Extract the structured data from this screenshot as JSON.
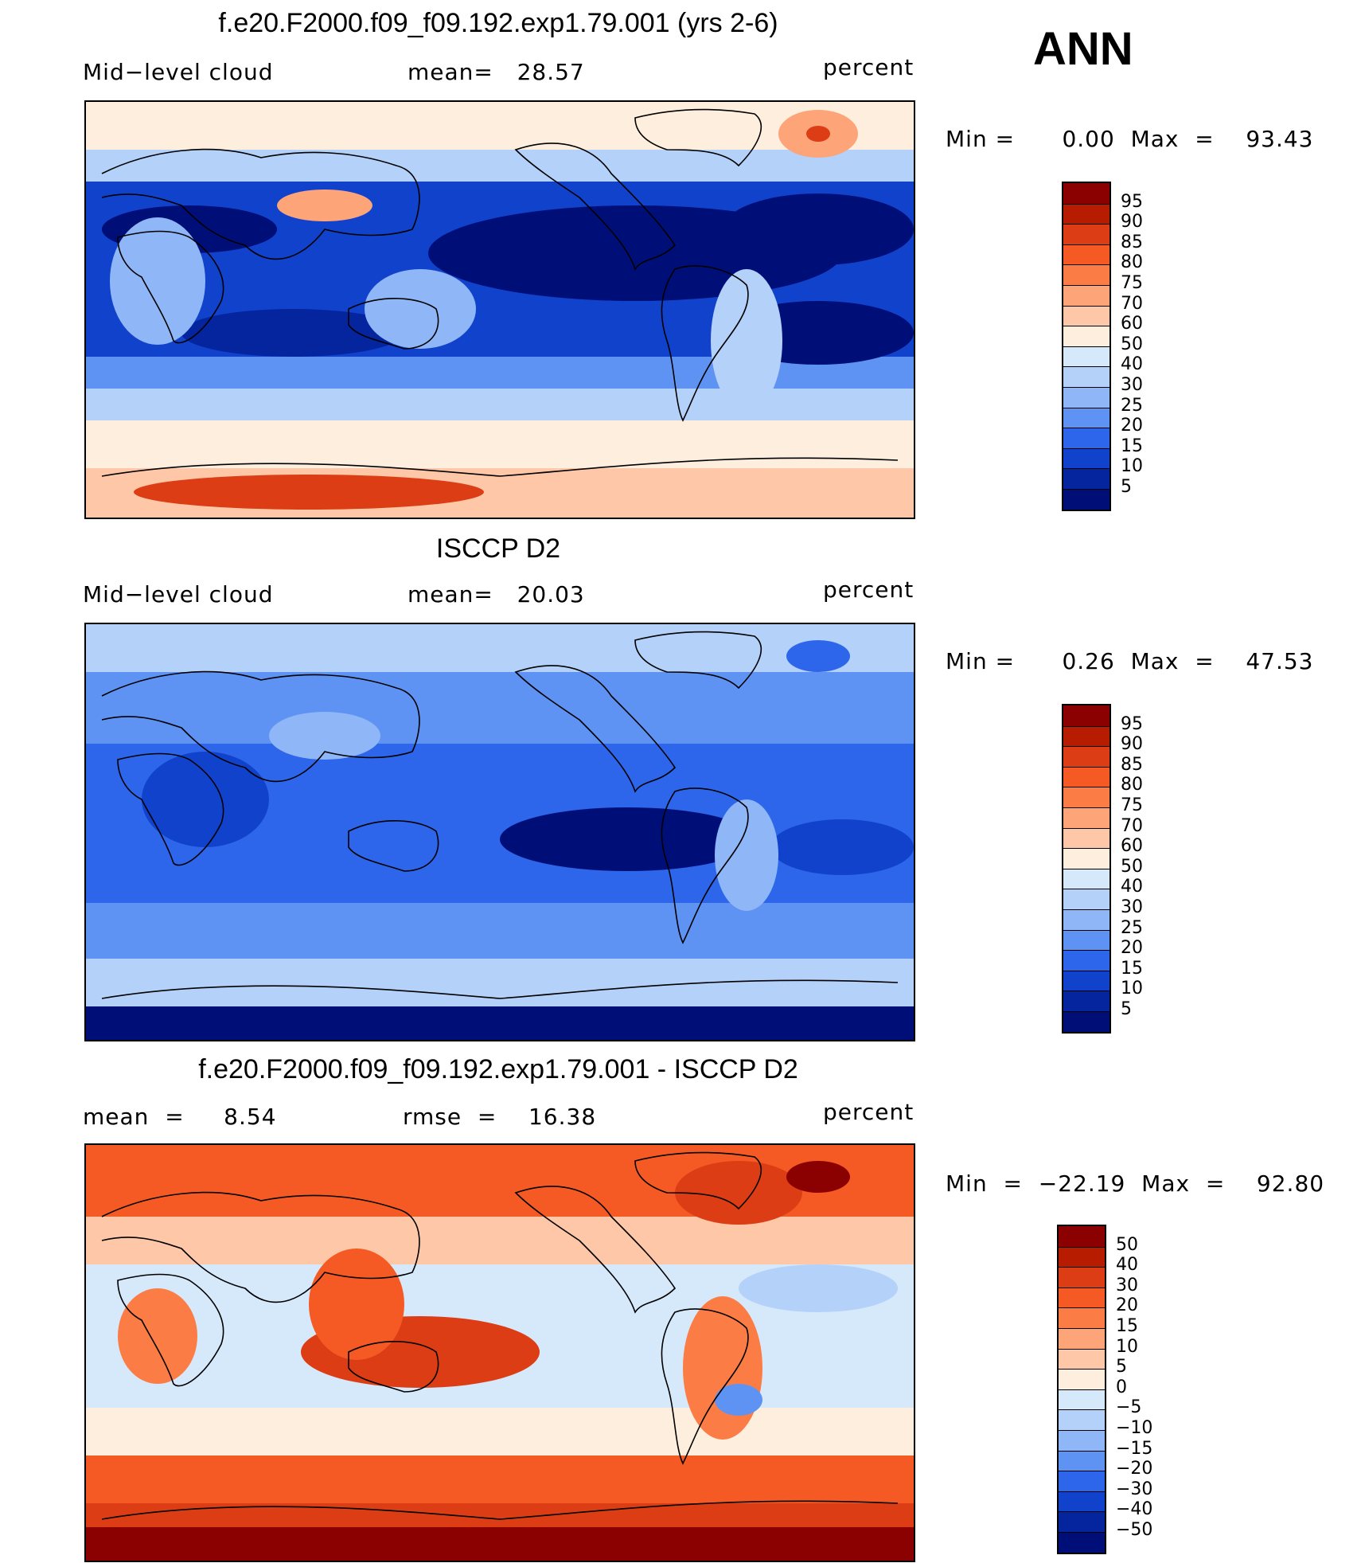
{
  "season": "ANN",
  "panels": [
    {
      "title": "f.e20.F2000.f09_f09.192.exp1.79.001 (yrs 2-6)",
      "left": "Mid−level cloud",
      "center": "mean=   28.57",
      "units": "percent",
      "minmax": "Min =      0.00  Max  =    93.43",
      "colorbar": {
        "labels": [
          "95",
          "90",
          "85",
          "80",
          "75",
          "70",
          "60",
          "50",
          "40",
          "30",
          "25",
          "20",
          "15",
          "10",
          "5"
        ],
        "colors": [
          "#8b0000",
          "#b71c00",
          "#dc3d14",
          "#f55a24",
          "#fb7d45",
          "#fda479",
          "#fdc7a8",
          "#feeede",
          "#d6e9fb",
          "#b3d1f9",
          "#8fb6f7",
          "#5f93f3",
          "#2d66ea",
          "#1142cc",
          "#05259e",
          "#000f78"
        ]
      }
    },
    {
      "title": "ISCCP D2",
      "left": "Mid−level cloud",
      "center": "mean=   20.03",
      "units": "percent",
      "minmax": "Min =      0.26  Max  =    47.53",
      "colorbar": {
        "labels": [
          "95",
          "90",
          "85",
          "80",
          "75",
          "70",
          "60",
          "50",
          "40",
          "30",
          "25",
          "20",
          "15",
          "10",
          "5"
        ],
        "colors": [
          "#8b0000",
          "#b71c00",
          "#dc3d14",
          "#f55a24",
          "#fb7d45",
          "#fda479",
          "#fdc7a8",
          "#feeede",
          "#d6e9fb",
          "#b3d1f9",
          "#8fb6f7",
          "#5f93f3",
          "#2d66ea",
          "#1142cc",
          "#05259e",
          "#000f78"
        ]
      }
    },
    {
      "title": "f.e20.F2000.f09_f09.192.exp1.79.001 - ISCCP D2",
      "left": "mean  =     8.54",
      "center": "rmse  =    16.38",
      "units": "percent",
      "minmax": "Min  =  −22.19  Max  =    92.80",
      "colorbar": {
        "labels": [
          "50",
          "40",
          "30",
          "20",
          "15",
          "10",
          "5",
          "0",
          "−5",
          "−10",
          "−15",
          "−20",
          "−30",
          "−40",
          "−50"
        ],
        "colors": [
          "#8b0000",
          "#b71c00",
          "#dc3d14",
          "#f55a24",
          "#fb7d45",
          "#fda479",
          "#fdc7a8",
          "#feeede",
          "#d6e9fb",
          "#b3d1f9",
          "#8fb6f7",
          "#5f93f3",
          "#2d66ea",
          "#1142cc",
          "#05259e",
          "#000f78"
        ]
      }
    }
  ]
}
